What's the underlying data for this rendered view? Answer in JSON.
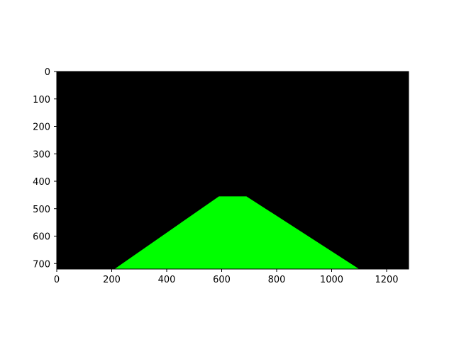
{
  "chart_data": {
    "type": "image",
    "title": "",
    "xlabel": "",
    "ylabel": "",
    "xlim": [
      0,
      1280
    ],
    "ylim": [
      720,
      0
    ],
    "y_axis_inverted": true,
    "x_ticks": [
      0,
      200,
      400,
      600,
      800,
      1000,
      1200
    ],
    "y_ticks": [
      0,
      100,
      200,
      300,
      400,
      500,
      600,
      700
    ],
    "x_tick_labels": [
      "0",
      "200",
      "400",
      "600",
      "800",
      "1000",
      "1200"
    ],
    "y_tick_labels": [
      "0",
      "100",
      "200",
      "300",
      "400",
      "500",
      "600",
      "700"
    ],
    "background_color": "#000000",
    "polygon": {
      "fill_color": "#00ff00",
      "vertices": [
        {
          "x": 210,
          "y": 720
        },
        {
          "x": 590,
          "y": 455
        },
        {
          "x": 690,
          "y": 455
        },
        {
          "x": 1100,
          "y": 720
        }
      ]
    },
    "grid": false,
    "legend": false
  }
}
